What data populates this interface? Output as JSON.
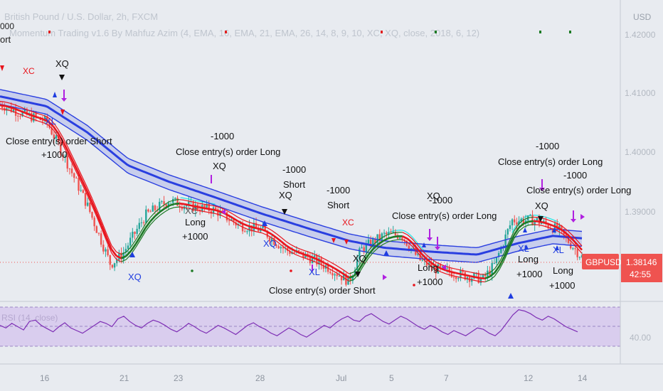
{
  "header": {
    "title": "British Pound / U.S. Dollar, 2h, FXCM",
    "indicator": "Momentum Trading v1.6 By Mahfuz Azim (4, EMA, 16, EMA, 21, EMA, 26, 14, 8, 9, 10, XC, XQ, close, 2018, 6, 12)",
    "fragment_top": "000",
    "fragment_short": "ort"
  },
  "price_axis": {
    "currency": "USD",
    "ticks": [
      "1.42000",
      "1.41000",
      "1.40000",
      "1.39000"
    ],
    "symbol": "GBPUSD",
    "last_price": "1.38146",
    "countdown": "42:55"
  },
  "rsi": {
    "label": "RSI (14, close)",
    "tick": "40.00"
  },
  "time_axis": {
    "ticks": [
      "16",
      "21",
      "23",
      "28",
      "Jul",
      "5",
      "7",
      "12",
      "14"
    ]
  },
  "annotations": [
    {
      "id": "xc1",
      "text": "XC"
    },
    {
      "id": "xq1",
      "text": "XQ"
    },
    {
      "id": "xl1",
      "text": "XL"
    },
    {
      "id": "close-short-1",
      "text": "Close entry(s) order Short"
    },
    {
      "id": "plus-1000-1",
      "text": "+1000"
    },
    {
      "id": "minus-1000-1",
      "text": "-1000"
    },
    {
      "id": "close-long-1",
      "text": "Close entry(s) order Long"
    },
    {
      "id": "xq2",
      "text": "XQ"
    },
    {
      "id": "xc2",
      "text": "XC"
    },
    {
      "id": "long-1",
      "text": "Long"
    },
    {
      "id": "plus-1000-2",
      "text": "+1000"
    },
    {
      "id": "xq3",
      "text": "XQ"
    },
    {
      "id": "minus-1000-2",
      "text": "-1000"
    },
    {
      "id": "short-1",
      "text": "Short"
    },
    {
      "id": "xq4",
      "text": "XQ"
    },
    {
      "id": "minus-1000-3",
      "text": "-1000"
    },
    {
      "id": "short-2",
      "text": "Short"
    },
    {
      "id": "xc3",
      "text": "XC"
    },
    {
      "id": "xq5",
      "text": "XQ"
    },
    {
      "id": "xl2",
      "text": "XL"
    },
    {
      "id": "close-short-2",
      "text": "Close entry(s) order Short"
    },
    {
      "id": "minus-1000-4",
      "text": "-1000"
    },
    {
      "id": "xq6",
      "text": "XQ"
    },
    {
      "id": "close-long-2",
      "text": "Close entry(s) order Long"
    },
    {
      "id": "long-2",
      "text": "Long"
    },
    {
      "id": "plus-1000-3",
      "text": "+1000"
    },
    {
      "id": "xq7",
      "text": "XQ"
    },
    {
      "id": "minus-1000-5",
      "text": "-1000"
    },
    {
      "id": "close-long-3",
      "text": "Close entry(s) order Long"
    },
    {
      "id": "minus-1000-6",
      "text": "-1000"
    },
    {
      "id": "close-long-4",
      "text": "Close entry(s) order Long"
    },
    {
      "id": "xq8",
      "text": "XQ"
    },
    {
      "id": "xl3",
      "text": "XL"
    },
    {
      "id": "long-3",
      "text": "Long"
    },
    {
      "id": "plus-1000-4",
      "text": "+1000"
    },
    {
      "id": "xl4",
      "text": "XL"
    },
    {
      "id": "long-4",
      "text": "Long"
    },
    {
      "id": "plus-1000-5",
      "text": "+1000"
    }
  ],
  "colors": {
    "background": "#e8ebf0",
    "rsi_background": "#d7c9ee",
    "rsi_line": "#7e2fb5",
    "candle_up": "#26a69a",
    "candle_down": "#ef5350",
    "ema_blue": "#2a3fe0",
    "band_fill": "#c4cbeb",
    "ema_red": "#e8141c",
    "ema_green": "#1c7a24",
    "cyan": "#2fe6e6",
    "price_badge": "#ef5350"
  },
  "chart_data": {
    "type": "candlestick",
    "symbol": "GBPUSD",
    "timeframe": "2h",
    "ylim": [
      1.3725,
      1.425
    ],
    "x": [
      "Jun 14",
      "Jun 16",
      "Jun 21",
      "Jun 23",
      "Jun 28",
      "Jul 1",
      "Jul 5",
      "Jul 7",
      "Jul 12",
      "Jul 14"
    ],
    "close_path": [
      [
        0,
        1.4125
      ],
      [
        0.04,
        1.4105
      ],
      [
        0.08,
        1.409
      ],
      [
        0.11,
        1.402
      ],
      [
        0.15,
        1.392
      ],
      [
        0.19,
        1.38
      ],
      [
        0.21,
        1.382
      ],
      [
        0.25,
        1.39
      ],
      [
        0.29,
        1.393
      ],
      [
        0.32,
        1.392
      ],
      [
        0.37,
        1.391
      ],
      [
        0.41,
        1.388
      ],
      [
        0.45,
        1.387
      ],
      [
        0.49,
        1.383
      ],
      [
        0.53,
        1.3815
      ],
      [
        0.57,
        1.379
      ],
      [
        0.6,
        1.3765
      ],
      [
        0.62,
        1.383
      ],
      [
        0.66,
        1.386
      ],
      [
        0.69,
        1.386
      ],
      [
        0.72,
        1.381
      ],
      [
        0.75,
        1.379
      ],
      [
        0.79,
        1.378
      ],
      [
        0.83,
        1.377
      ],
      [
        0.85,
        1.38
      ],
      [
        0.88,
        1.389
      ],
      [
        0.92,
        1.389
      ],
      [
        0.96,
        1.387
      ],
      [
        1.0,
        1.3815
      ]
    ],
    "ema_blue_path": [
      [
        0,
        1.4143
      ],
      [
        0.08,
        1.4123
      ],
      [
        0.15,
        1.407
      ],
      [
        0.22,
        1.4003
      ],
      [
        0.29,
        1.397
      ],
      [
        0.37,
        1.3938
      ],
      [
        0.45,
        1.3905
      ],
      [
        0.53,
        1.3875
      ],
      [
        0.6,
        1.385
      ],
      [
        0.66,
        1.3836
      ],
      [
        0.74,
        1.3828
      ],
      [
        0.82,
        1.3822
      ],
      [
        0.89,
        1.3845
      ],
      [
        0.95,
        1.386
      ],
      [
        1.0,
        1.3855
      ]
    ],
    "last_price": 1.38146,
    "rsi": {
      "ylim": [
        20,
        80
      ],
      "values": [
        52,
        48,
        55,
        50,
        45,
        58,
        60,
        52,
        47,
        42,
        50,
        56,
        48,
        44,
        40,
        46,
        52,
        58,
        55,
        50,
        62,
        66,
        58,
        52,
        48,
        55,
        60,
        57,
        52,
        46,
        42,
        48,
        55,
        50,
        44,
        40,
        46,
        52,
        48,
        43,
        38,
        45,
        52,
        56,
        50,
        46,
        40,
        36,
        42,
        48,
        44,
        38,
        34,
        40,
        46,
        52,
        48,
        56,
        62,
        66,
        60,
        58,
        66,
        70,
        64,
        58,
        54,
        60,
        66,
        62,
        56,
        50,
        46,
        52,
        48,
        42,
        38,
        44,
        40,
        36,
        42,
        48,
        46,
        40,
        36,
        44,
        56,
        68,
        76,
        74,
        70,
        64,
        60,
        66,
        62,
        56,
        50,
        46,
        42
      ]
    }
  }
}
